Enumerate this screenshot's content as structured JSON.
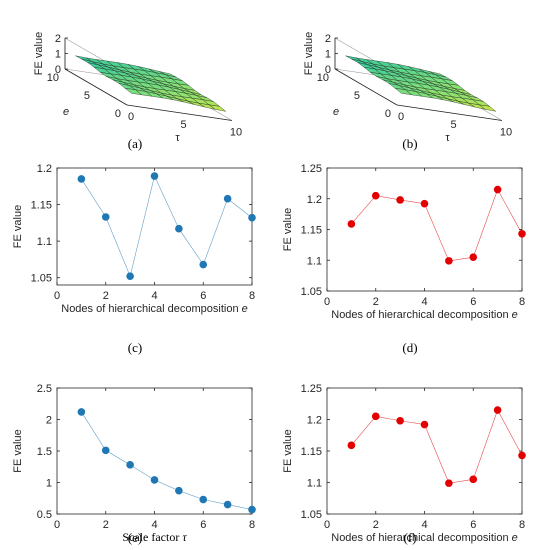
{
  "chart_data": [
    {
      "panel": "(a)",
      "type": "surface3d",
      "zlabel": "FE value",
      "xlabel": "e",
      "ylabel": "τ",
      "zlim": [
        0,
        2
      ],
      "zticks": [
        "0",
        "1",
        "2"
      ],
      "e_ticks": [
        "0",
        "5",
        "10"
      ],
      "tau_ticks": [
        "0",
        "5",
        "10"
      ],
      "e": [
        1,
        2,
        3,
        4,
        5,
        6,
        7,
        8,
        9,
        10
      ],
      "tau": [
        1,
        2,
        3,
        4,
        5,
        6,
        7,
        8,
        9,
        10
      ],
      "z_range": [
        0.3,
        1.0
      ],
      "colormap": [
        "#2ec8a0",
        "#7ee07a",
        "#d8ea3a"
      ]
    },
    {
      "panel": "(b)",
      "type": "surface3d",
      "zlabel": "FE value",
      "xlabel": "e",
      "ylabel": "τ",
      "zlim": [
        0,
        2
      ],
      "zticks": [
        "0",
        "1",
        "2"
      ],
      "e_ticks": [
        "0",
        "5",
        "10"
      ],
      "tau_ticks": [
        "0",
        "5",
        "10"
      ],
      "e": [
        1,
        2,
        3,
        4,
        5,
        6,
        7,
        8,
        9,
        10
      ],
      "tau": [
        1,
        2,
        3,
        4,
        5,
        6,
        7,
        8,
        9,
        10
      ],
      "z_range": [
        0.3,
        1.0
      ],
      "colormap": [
        "#2ec8a0",
        "#7ee07a",
        "#d8ea3a"
      ]
    },
    {
      "panel": "(c)",
      "type": "line",
      "xlabel": "Nodes of hierarchical decomposition e",
      "ylabel": "FE value",
      "x": [
        1,
        2,
        3,
        4,
        5,
        6,
        7,
        8
      ],
      "values": [
        1.185,
        1.133,
        1.052,
        1.189,
        1.117,
        1.068,
        1.158,
        1.132
      ],
      "xlim": [
        0,
        8
      ],
      "ylim": [
        1.04,
        1.2
      ],
      "xticks": [
        0,
        2,
        4,
        6,
        8
      ],
      "yticks": [
        1.05,
        1.1,
        1.15,
        1.2
      ],
      "ytick_labels": [
        "1.05",
        "1.1",
        "1.15",
        "1.2"
      ],
      "color": "#1f77b4"
    },
    {
      "panel": "(d)",
      "type": "line",
      "xlabel": "Nodes of hierarchical decomposition e",
      "ylabel": "FE value",
      "x": [
        1,
        2,
        3,
        4,
        5,
        6,
        7,
        8
      ],
      "values": [
        1.159,
        1.205,
        1.198,
        1.192,
        1.099,
        1.105,
        1.215,
        1.143
      ],
      "xlim": [
        0,
        8
      ],
      "ylim": [
        1.05,
        1.25
      ],
      "xticks": [
        0,
        2,
        4,
        6,
        8
      ],
      "yticks": [
        1.05,
        1.1,
        1.15,
        1.2,
        1.25
      ],
      "ytick_labels": [
        "1.05",
        "1.1",
        "1.15",
        "1.2",
        "1.25"
      ],
      "color": "#e30000"
    },
    {
      "panel": "(e)",
      "type": "line",
      "xlabel": "Scale factor τ",
      "ylabel": "FE value",
      "x": [
        1,
        2,
        3,
        4,
        5,
        6,
        7,
        8
      ],
      "values": [
        2.12,
        1.51,
        1.28,
        1.04,
        0.87,
        0.73,
        0.65,
        0.57
      ],
      "xlim": [
        0,
        8
      ],
      "ylim": [
        0.5,
        2.5
      ],
      "xticks": [
        0,
        2,
        4,
        6,
        8
      ],
      "yticks": [
        0.5,
        1,
        1.5,
        2,
        2.5
      ],
      "ytick_labels": [
        "0.5",
        "1",
        "1.5",
        "2",
        "2.5"
      ],
      "color": "#1f77b4"
    },
    {
      "panel": "(f)",
      "type": "line",
      "xlabel": "Nodes of hierarchical decomposition e",
      "ylabel": "FE value",
      "x": [
        1,
        2,
        3,
        4,
        5,
        6,
        7,
        8
      ],
      "values": [
        1.159,
        1.205,
        1.198,
        1.192,
        1.099,
        1.105,
        1.215,
        1.143
      ],
      "xlim": [
        0,
        8
      ],
      "ylim": [
        1.05,
        1.25
      ],
      "xticks": [
        0,
        2,
        4,
        6,
        8
      ],
      "yticks": [
        1.05,
        1.1,
        1.15,
        1.2,
        1.25
      ],
      "ytick_labels": [
        "1.05",
        "1.1",
        "1.15",
        "1.2",
        "1.25"
      ],
      "color": "#e30000"
    }
  ]
}
